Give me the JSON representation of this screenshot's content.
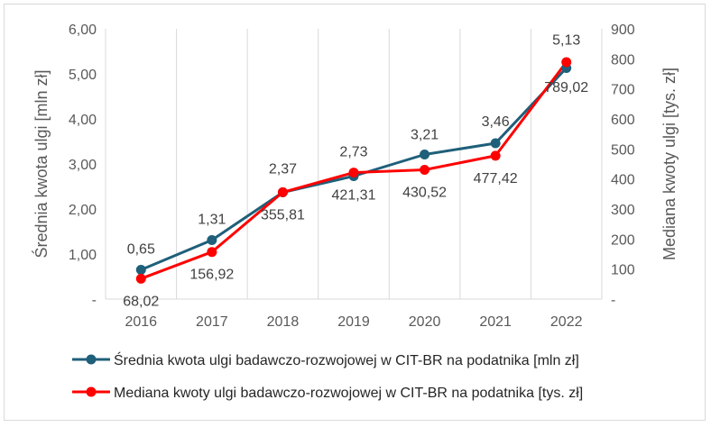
{
  "chart_data": {
    "type": "line",
    "categories": [
      "2016",
      "2017",
      "2018",
      "2019",
      "2020",
      "2021",
      "2022"
    ],
    "y_left": {
      "label": "Średnia kwota ulgi [mln zł]",
      "ylim": [
        0,
        6
      ],
      "ticks": [
        0,
        1,
        2,
        3,
        4,
        5,
        6
      ],
      "tick_labels": [
        "-",
        "1,00",
        "2,00",
        "3,00",
        "4,00",
        "5,00",
        "6,00"
      ]
    },
    "y_right": {
      "label": "Mediana kwoty ulgi [tys. zł]",
      "ylim": [
        0,
        900
      ],
      "ticks": [
        0,
        100,
        200,
        300,
        400,
        500,
        600,
        700,
        800,
        900
      ],
      "tick_labels": [
        "-",
        "100",
        "200",
        "300",
        "400",
        "500",
        "600",
        "700",
        "800",
        "900"
      ]
    },
    "series": [
      {
        "name": "Średnia kwota ulgi badawczo-rozwojowej w CIT-BR na podatnika [mln zł]",
        "axis": "left",
        "color": "#1f5f7a",
        "values": [
          0.65,
          1.31,
          2.37,
          2.73,
          3.21,
          3.46,
          5.13
        ],
        "labels": [
          "0,65",
          "1,31",
          "2,37",
          "2,73",
          "3,21",
          "3,46",
          "5,13"
        ]
      },
      {
        "name": "Mediana kwoty ulgi badawczo-rozwojowej w CIT-BR na podatnika [tys. zł]",
        "axis": "right",
        "color": "#ff0000",
        "values": [
          68.02,
          156.92,
          355.81,
          421.31,
          430.52,
          477.42,
          789.02
        ],
        "labels": [
          "68,02",
          "156,92",
          "355,81",
          "421,31",
          "430,52",
          "477,42",
          "789,02"
        ]
      }
    ],
    "grid": "vertical",
    "legend_position": "bottom"
  }
}
